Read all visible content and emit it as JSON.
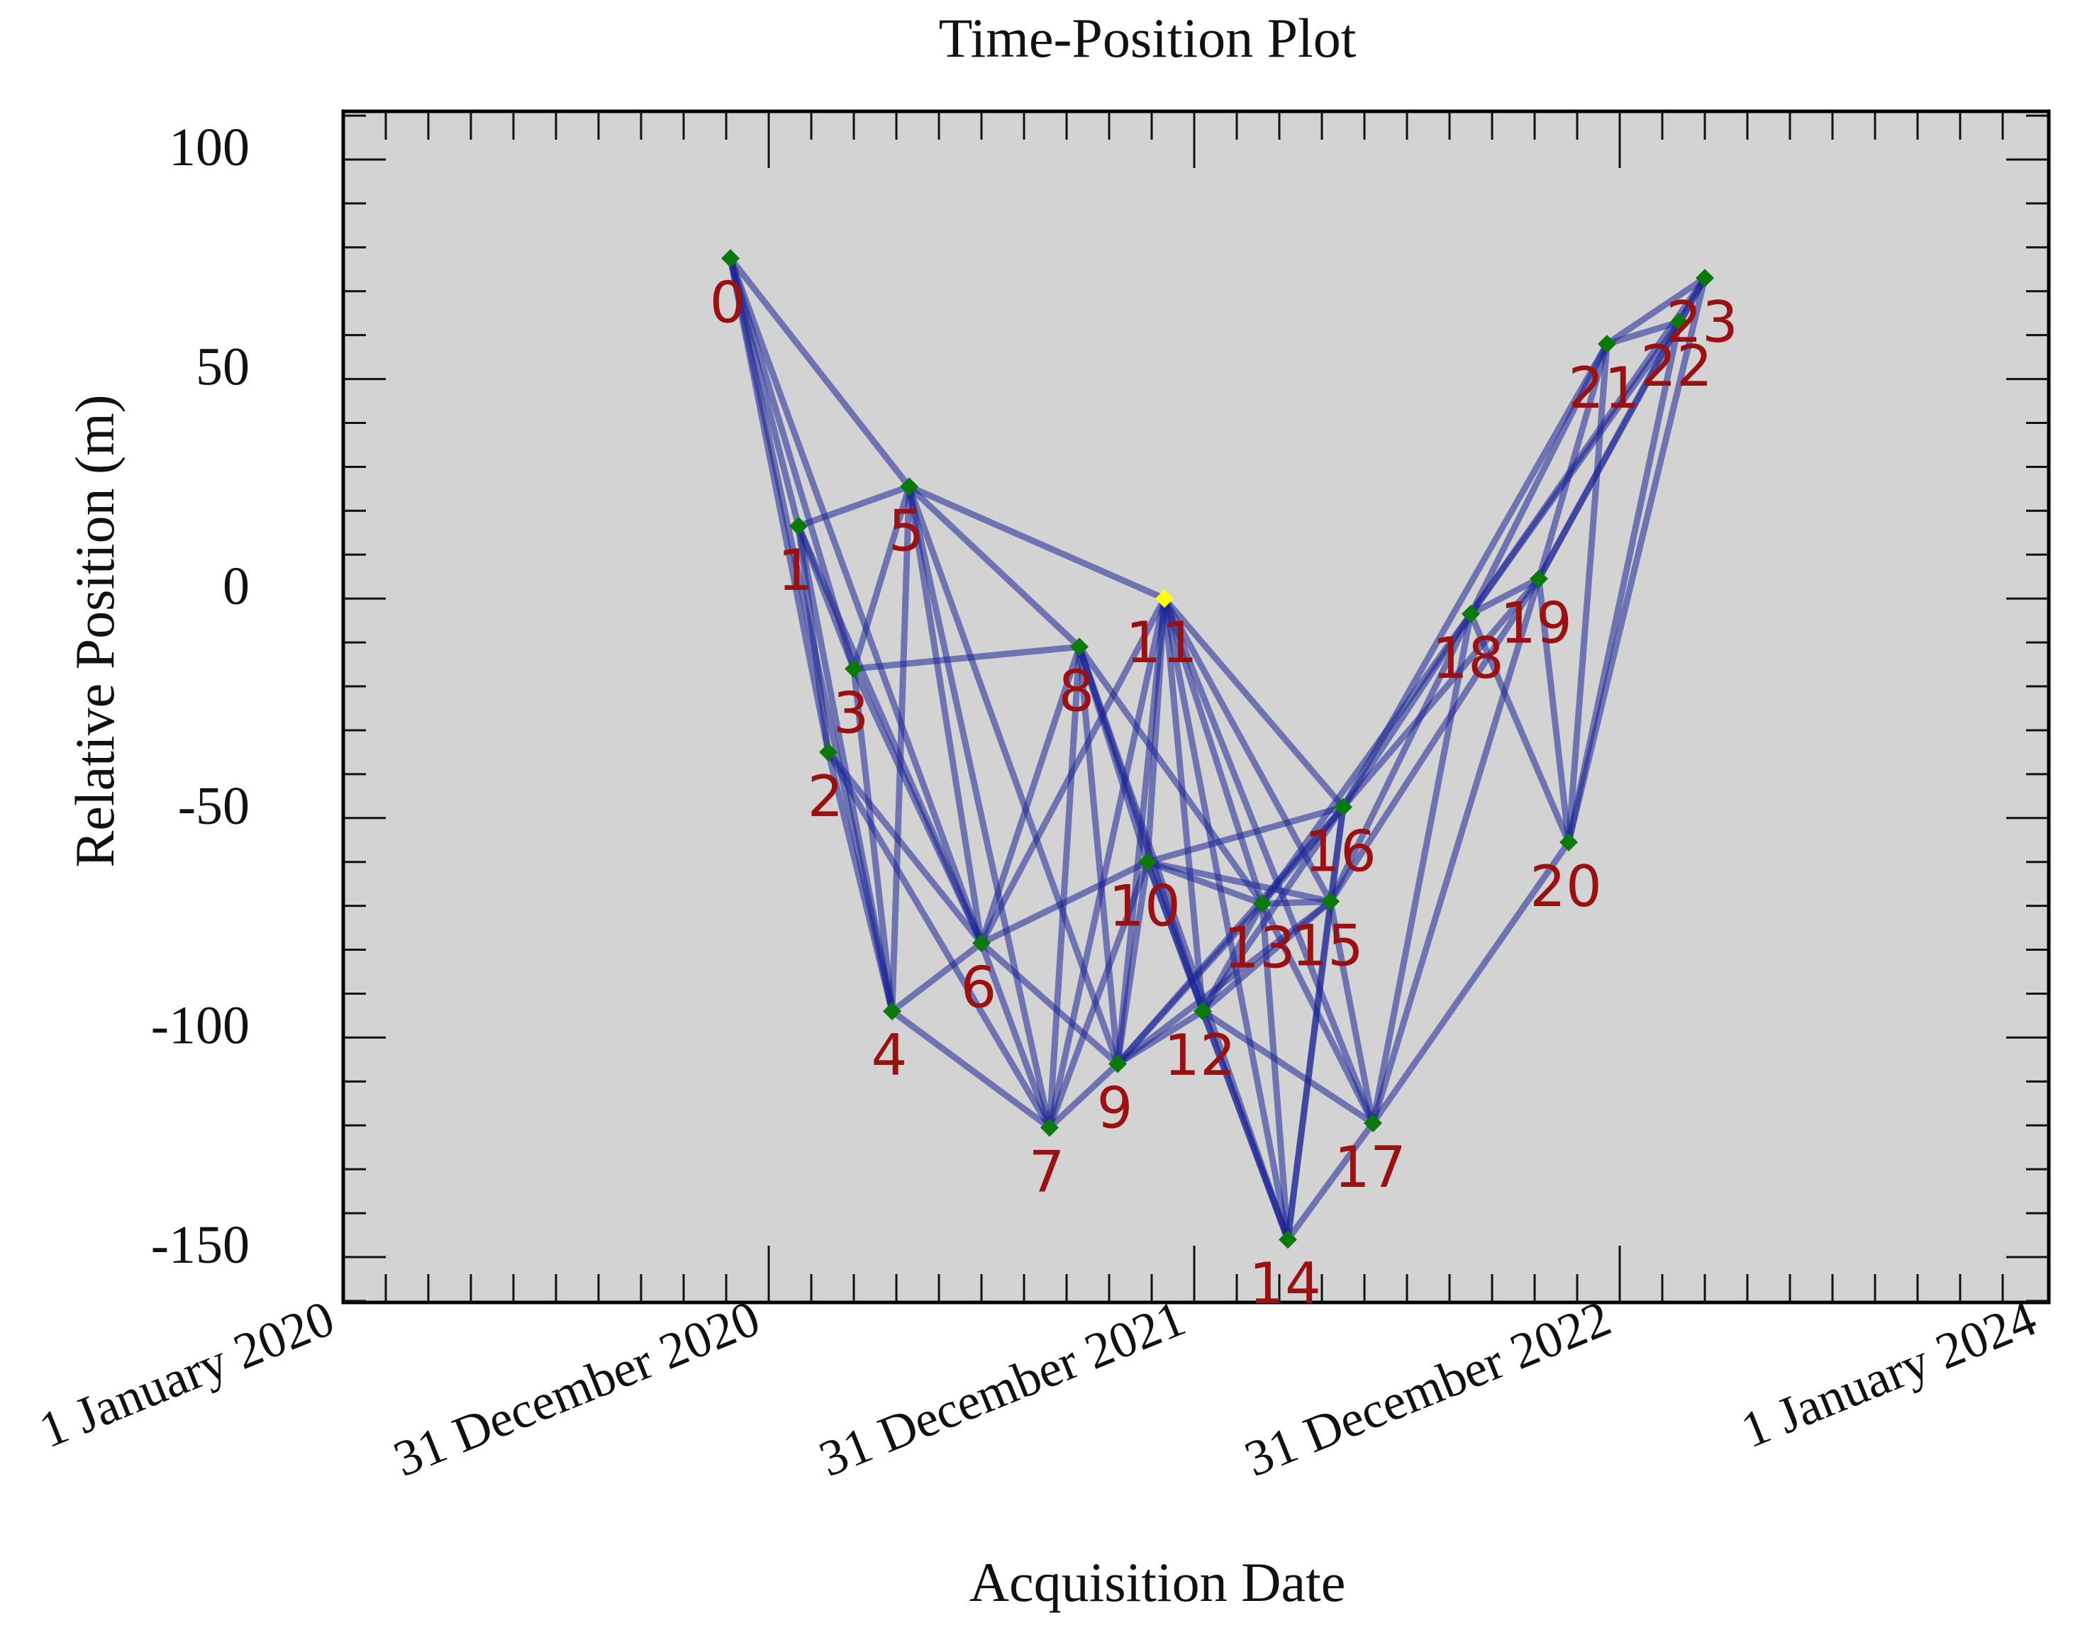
{
  "chart_data": {
    "type": "network-scatter",
    "title": "Time-Position Plot",
    "xlabel": "Acquisition Date",
    "ylabel": "Relative Position (m)",
    "x_unit": "years since 1 January 2020",
    "xlim": [
      0,
      4
    ],
    "ylim": [
      -150,
      100
    ],
    "x_ticks": [
      {
        "value": 0,
        "label": "1 January 2020"
      },
      {
        "value": 1,
        "label": "31 December 2020"
      },
      {
        "value": 2,
        "label": "31 December 2021"
      },
      {
        "value": 3,
        "label": "31 December 2022"
      },
      {
        "value": 4,
        "label": "1 January 2024"
      }
    ],
    "y_ticks": [
      {
        "value": 100,
        "label": "100"
      },
      {
        "value": 50,
        "label": "50"
      },
      {
        "value": 0,
        "label": "0"
      },
      {
        "value": -50,
        "label": "-50"
      },
      {
        "value": -100,
        "label": "-100"
      },
      {
        "value": -150,
        "label": "-150"
      }
    ],
    "points": [
      {
        "id": "0",
        "x": 0.91,
        "y": 77.5
      },
      {
        "id": "1",
        "x": 1.07,
        "y": 16.5
      },
      {
        "id": "2",
        "x": 1.14,
        "y": -35
      },
      {
        "id": "3",
        "x": 1.2,
        "y": -16
      },
      {
        "id": "4",
        "x": 1.29,
        "y": -94
      },
      {
        "id": "5",
        "x": 1.33,
        "y": 25.5
      },
      {
        "id": "6",
        "x": 1.5,
        "y": -78.5
      },
      {
        "id": "7",
        "x": 1.66,
        "y": -120.5
      },
      {
        "id": "8",
        "x": 1.73,
        "y": -11
      },
      {
        "id": "9",
        "x": 1.82,
        "y": -106
      },
      {
        "id": "10",
        "x": 1.89,
        "y": -60
      },
      {
        "id": "11",
        "x": 1.93,
        "y": 0,
        "reference": true
      },
      {
        "id": "12",
        "x": 2.02,
        "y": -94
      },
      {
        "id": "13",
        "x": 2.16,
        "y": -69.5
      },
      {
        "id": "14",
        "x": 2.22,
        "y": -146
      },
      {
        "id": "15",
        "x": 2.32,
        "y": -69
      },
      {
        "id": "16",
        "x": 2.35,
        "y": -47.5
      },
      {
        "id": "17",
        "x": 2.42,
        "y": -119.5
      },
      {
        "id": "18",
        "x": 2.65,
        "y": -3.5
      },
      {
        "id": "19",
        "x": 2.81,
        "y": 4.5
      },
      {
        "id": "20",
        "x": 2.88,
        "y": -55.5
      },
      {
        "id": "21",
        "x": 2.97,
        "y": 58
      },
      {
        "id": "22",
        "x": 3.14,
        "y": 63
      },
      {
        "id": "23",
        "x": 3.2,
        "y": 73
      }
    ],
    "edges": [
      [
        "0",
        "1"
      ],
      [
        "0",
        "2"
      ],
      [
        "0",
        "3"
      ],
      [
        "0",
        "4"
      ],
      [
        "0",
        "5"
      ],
      [
        "0",
        "6"
      ],
      [
        "1",
        "3"
      ],
      [
        "1",
        "5"
      ],
      [
        "1",
        "6"
      ],
      [
        "1",
        "4"
      ],
      [
        "1",
        "2"
      ],
      [
        "2",
        "4"
      ],
      [
        "2",
        "6"
      ],
      [
        "2",
        "7"
      ],
      [
        "3",
        "5"
      ],
      [
        "3",
        "4"
      ],
      [
        "3",
        "6"
      ],
      [
        "3",
        "8"
      ],
      [
        "4",
        "5"
      ],
      [
        "4",
        "6"
      ],
      [
        "4",
        "7"
      ],
      [
        "5",
        "7"
      ],
      [
        "5",
        "8"
      ],
      [
        "5",
        "9"
      ],
      [
        "5",
        "11"
      ],
      [
        "5",
        "6"
      ],
      [
        "6",
        "7"
      ],
      [
        "6",
        "9"
      ],
      [
        "6",
        "8"
      ],
      [
        "6",
        "10"
      ],
      [
        "6",
        "11"
      ],
      [
        "7",
        "8"
      ],
      [
        "7",
        "9"
      ],
      [
        "7",
        "10"
      ],
      [
        "7",
        "11"
      ],
      [
        "8",
        "9"
      ],
      [
        "8",
        "10"
      ],
      [
        "8",
        "12"
      ],
      [
        "8",
        "13"
      ],
      [
        "8",
        "14"
      ],
      [
        "9",
        "10"
      ],
      [
        "9",
        "11"
      ],
      [
        "9",
        "12"
      ],
      [
        "9",
        "13"
      ],
      [
        "9",
        "15"
      ],
      [
        "9",
        "16"
      ],
      [
        "10",
        "11"
      ],
      [
        "10",
        "12"
      ],
      [
        "10",
        "13"
      ],
      [
        "10",
        "14"
      ],
      [
        "10",
        "16"
      ],
      [
        "10",
        "15"
      ],
      [
        "11",
        "12"
      ],
      [
        "11",
        "13"
      ],
      [
        "11",
        "14"
      ],
      [
        "11",
        "15"
      ],
      [
        "11",
        "16"
      ],
      [
        "11",
        "17"
      ],
      [
        "12",
        "13"
      ],
      [
        "12",
        "14"
      ],
      [
        "12",
        "15"
      ],
      [
        "12",
        "16"
      ],
      [
        "12",
        "17"
      ],
      [
        "13",
        "14"
      ],
      [
        "13",
        "15"
      ],
      [
        "13",
        "16"
      ],
      [
        "13",
        "17"
      ],
      [
        "13",
        "18"
      ],
      [
        "14",
        "15"
      ],
      [
        "14",
        "16"
      ],
      [
        "14",
        "17"
      ],
      [
        "15",
        "16"
      ],
      [
        "15",
        "17"
      ],
      [
        "15",
        "18"
      ],
      [
        "15",
        "19"
      ],
      [
        "16",
        "18"
      ],
      [
        "16",
        "19"
      ],
      [
        "16",
        "21"
      ],
      [
        "17",
        "18"
      ],
      [
        "17",
        "19"
      ],
      [
        "17",
        "20"
      ],
      [
        "18",
        "19"
      ],
      [
        "18",
        "20"
      ],
      [
        "18",
        "21"
      ],
      [
        "18",
        "22"
      ],
      [
        "18",
        "23"
      ],
      [
        "19",
        "20"
      ],
      [
        "19",
        "21"
      ],
      [
        "19",
        "22"
      ],
      [
        "19",
        "23"
      ],
      [
        "20",
        "21"
      ],
      [
        "20",
        "22"
      ],
      [
        "20",
        "23"
      ],
      [
        "21",
        "22"
      ],
      [
        "21",
        "23"
      ],
      [
        "22",
        "23"
      ]
    ],
    "plot_background": "#d3d3d3",
    "edge_color": "#1c2596",
    "point_color": "#0a7a0a",
    "reference_point_color": "#ffff00",
    "label_color": "#9b1010"
  }
}
